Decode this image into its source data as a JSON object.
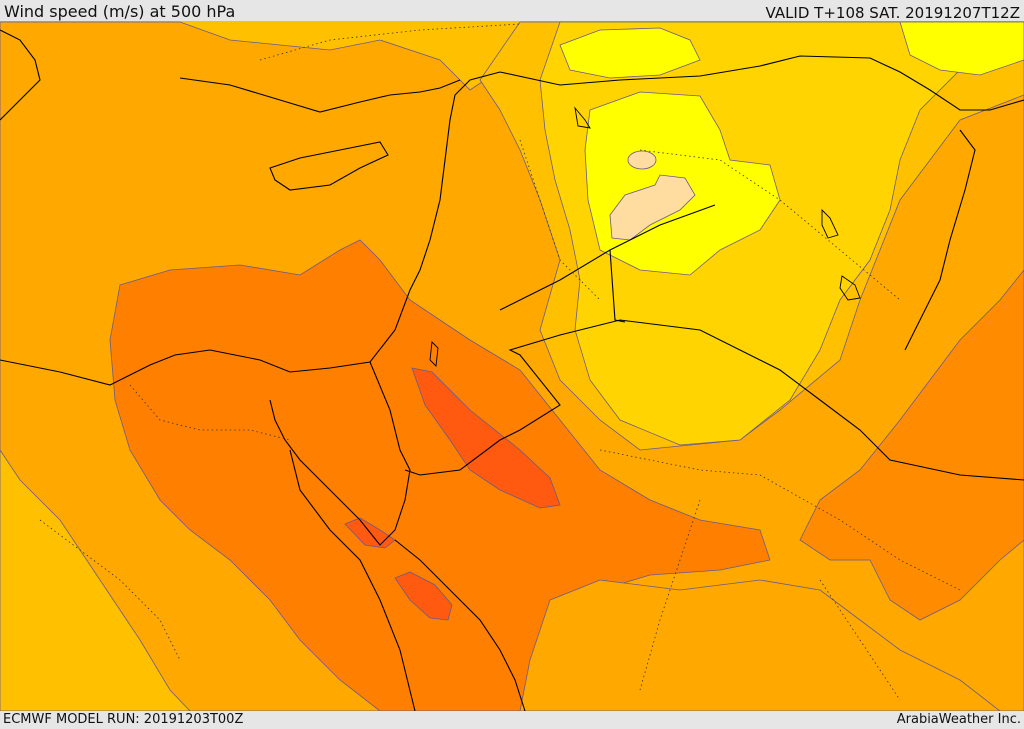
{
  "header": {
    "title": "Wind speed (m/s) at 500 hPa",
    "valid": "VALID T+108 SAT. 20191207T12Z"
  },
  "footer": {
    "model_run": "ECMWF MODEL RUN: 20191203T00Z",
    "credit": "ArabiaWeather Inc."
  },
  "colors": {
    "band_10_15": "#ffff00",
    "band_15_20": "#ffd400",
    "band_20_25": "#ffa800",
    "band_25_30": "#ff8c00",
    "band_30_35": "#ff7f00",
    "band_35_40": "#ff5a10",
    "band_calm": "#ffdca0",
    "band_outer": "#ffc000",
    "coastline": "#000000",
    "contour": "#5a4a8a"
  }
}
